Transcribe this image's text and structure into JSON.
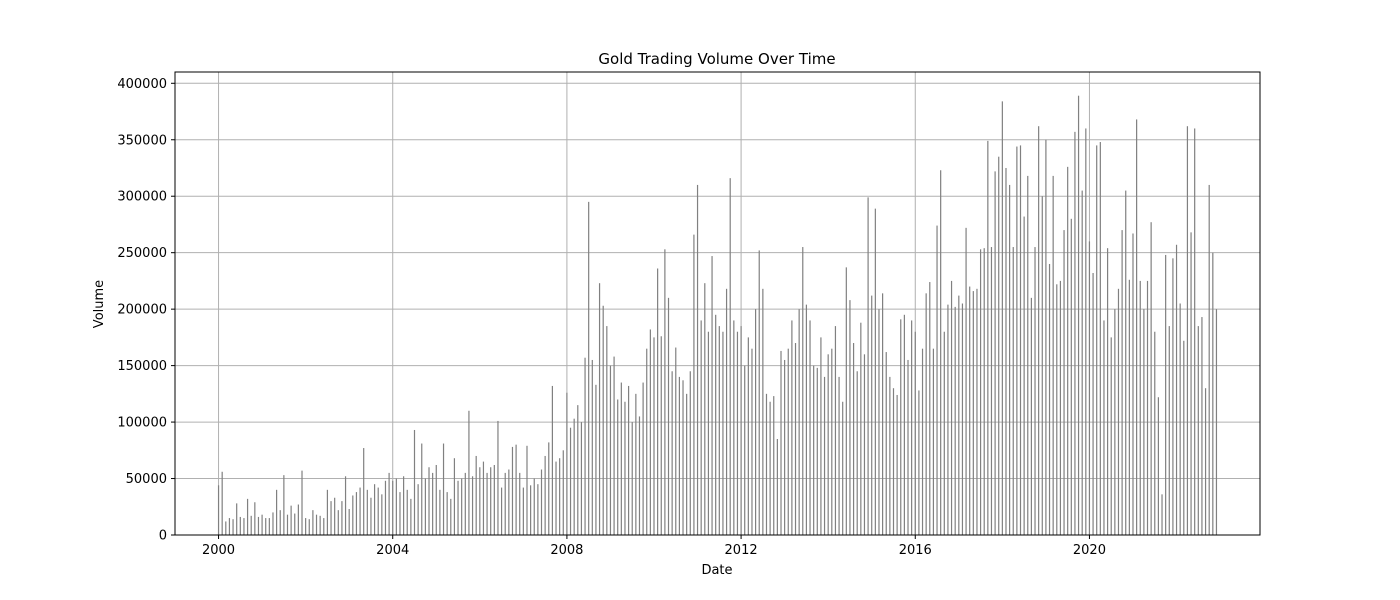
{
  "chart_data": {
    "type": "bar",
    "title": "Gold Trading Volume Over Time",
    "xlabel": "Date",
    "ylabel": "Volume",
    "xlim": [
      "1999-01-01",
      "2023-12-01"
    ],
    "ylim": [
      0,
      410000
    ],
    "x_ticks": [
      "2000",
      "2004",
      "2008",
      "2012",
      "2016",
      "2020"
    ],
    "y_ticks": [
      "0",
      "50000",
      "100000",
      "150000",
      "200000",
      "250000",
      "300000",
      "350000",
      "400000"
    ],
    "grid": true,
    "bar_color": "#808080",
    "yearly_profile": [
      {
        "year": 2000,
        "values": [
          44000,
          56000,
          12000,
          15000,
          14000,
          28000,
          16000,
          15000,
          32000,
          17000,
          29000,
          16000
        ]
      },
      {
        "year": 2001,
        "values": [
          18000,
          15000,
          15000,
          20000,
          40000,
          22000,
          53000,
          18000,
          26000,
          19000,
          27000,
          57000
        ]
      },
      {
        "year": 2002,
        "values": [
          15000,
          14000,
          22000,
          18000,
          17000,
          15000,
          40000,
          30000,
          33000,
          22000,
          30000,
          52000
        ]
      },
      {
        "year": 2003,
        "values": [
          23000,
          35000,
          38000,
          42000,
          77000,
          40000,
          33000,
          45000,
          42000,
          36000,
          48000,
          55000
        ]
      },
      {
        "year": 2004,
        "values": [
          48000,
          50000,
          38000,
          52000,
          40000,
          32000,
          93000,
          45000,
          81000,
          50000,
          60000,
          55000
        ]
      },
      {
        "year": 2005,
        "values": [
          62000,
          40000,
          81000,
          38000,
          32000,
          68000,
          48000,
          50000,
          55000,
          110000,
          52000,
          70000
        ]
      },
      {
        "year": 2006,
        "values": [
          60000,
          65000,
          55000,
          60000,
          62000,
          101000,
          42000,
          55000,
          58000,
          78000,
          80000,
          55000
        ]
      },
      {
        "year": 2007,
        "values": [
          42000,
          79000,
          44000,
          50000,
          45000,
          58000,
          70000,
          82000,
          132000,
          65000,
          68000,
          75000
        ]
      },
      {
        "year": 2008,
        "values": [
          126000,
          95000,
          103000,
          115000,
          100000,
          157000,
          295000,
          155000,
          133000,
          223000,
          203000,
          185000
        ]
      },
      {
        "year": 2009,
        "values": [
          150000,
          158000,
          120000,
          135000,
          118000,
          132000,
          100000,
          125000,
          105000,
          135000,
          165000,
          182000
        ]
      },
      {
        "year": 2010,
        "values": [
          175000,
          236000,
          176000,
          253000,
          210000,
          145000,
          166000,
          140000,
          137000,
          125000,
          145000,
          266000
        ]
      },
      {
        "year": 2011,
        "values": [
          310000,
          190000,
          223000,
          180000,
          247000,
          195000,
          185000,
          180000,
          218000,
          316000,
          190000,
          180000
        ]
      },
      {
        "year": 2012,
        "values": [
          185000,
          150000,
          175000,
          165000,
          200000,
          252000,
          218000,
          125000,
          118000,
          123000,
          85000,
          163000
        ]
      },
      {
        "year": 2013,
        "values": [
          155000,
          165000,
          190000,
          170000,
          200000,
          255000,
          204000,
          190000,
          150000,
          148000,
          175000,
          140000
        ]
      },
      {
        "year": 2014,
        "values": [
          160000,
          165000,
          185000,
          140000,
          118000,
          237000,
          208000,
          170000,
          145000,
          188000,
          160000,
          299000
        ]
      },
      {
        "year": 2015,
        "values": [
          212000,
          289000,
          200000,
          214000,
          162000,
          140000,
          130000,
          124000,
          191000,
          195000,
          155000,
          190000
        ]
      },
      {
        "year": 2016,
        "values": [
          180000,
          128000,
          165000,
          214000,
          224000,
          165000,
          274000,
          323000,
          180000,
          204000,
          225000,
          202000
        ]
      },
      {
        "year": 2017,
        "values": [
          212000,
          205000,
          272000,
          220000,
          216000,
          218000,
          253000,
          254000,
          349000,
          255000,
          322000,
          335000
        ]
      },
      {
        "year": 2018,
        "values": [
          384000,
          325000,
          310000,
          255000,
          344000,
          345000,
          282000,
          318000,
          210000,
          255000,
          362000,
          300000
        ]
      },
      {
        "year": 2019,
        "values": [
          350000,
          240000,
          318000,
          222000,
          225000,
          270000,
          326000,
          280000,
          357000,
          389000,
          305000,
          360000
        ]
      },
      {
        "year": 2020,
        "values": [
          260000,
          232000,
          345000,
          348000,
          190000,
          254000,
          175000,
          200000,
          218000,
          270000,
          305000,
          226000
        ]
      },
      {
        "year": 2021,
        "values": [
          267000,
          368000,
          225000,
          200000,
          225000,
          277000,
          180000,
          122000,
          36000,
          248000,
          185000,
          245000
        ]
      },
      {
        "year": 2022,
        "values": [
          257000,
          205000,
          172000,
          362000,
          268000,
          360000,
          185000,
          193000,
          130000,
          310000,
          250000,
          200000
        ]
      }
    ]
  }
}
